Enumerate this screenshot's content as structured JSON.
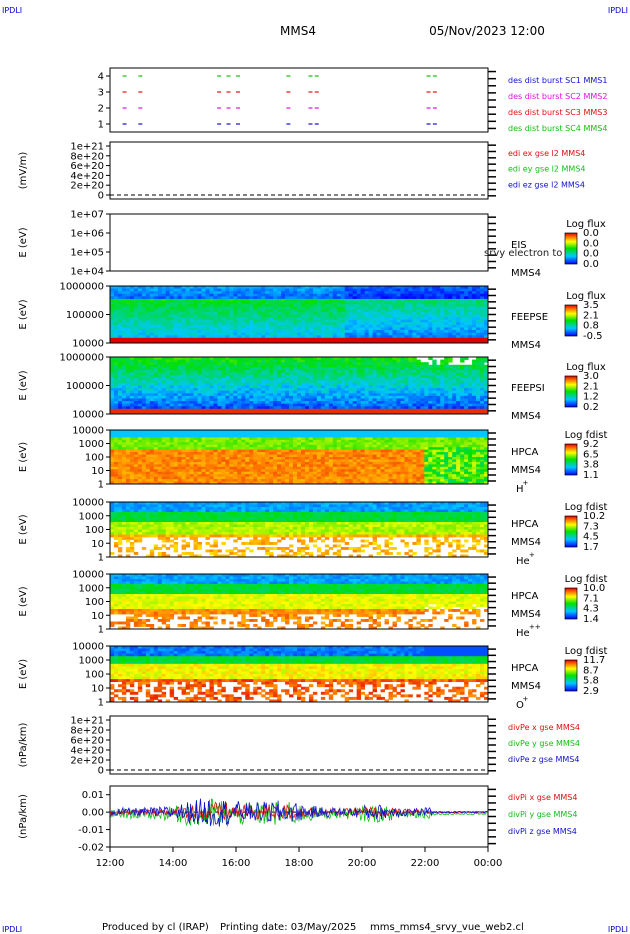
{
  "header": {
    "corner_tl": "IPDLI",
    "corner_tr": "IPDLI",
    "corner_bl": "IPDLI",
    "corner_br": "IPDLI",
    "spacecraft": "MMS4",
    "datetime": "05/Nov/2023 12:00"
  },
  "footer": {
    "produced_by": "Produced by cl (IRAP)",
    "printing_date": "Printing date: 03/May/2025",
    "script": "mms_mms4_srvy_vue_web2.cl"
  },
  "colors": {
    "blue": "#1010d0",
    "magenta": "#e010e0",
    "red": "#e01010",
    "green": "#10c010"
  },
  "chart_data": {
    "type": "heatmap",
    "x_ticks": [
      "12:00",
      "14:00",
      "16:00",
      "18:00",
      "20:00",
      "22:00",
      "00:00"
    ],
    "panels": [
      {
        "id": "burst",
        "ytick_labels": [
          "4",
          "3",
          "2",
          "1"
        ],
        "ylabel": "",
        "side_labels": [
          {
            "text": "des dist burst SC1 MMS1",
            "color": "#1010d0"
          },
          {
            "text": "des dist burst SC2 MMS2",
            "color": "#e010e0"
          },
          {
            "text": "des dist burst SC3 MMS3",
            "color": "#e01010"
          },
          {
            "text": "des dist burst SC4 MMS4",
            "color": "#10c010"
          }
        ],
        "burst_times_hours": [
          0.4,
          0.9,
          3.4,
          3.7,
          4.0,
          5.6,
          6.3,
          6.5,
          10.05,
          10.25
        ]
      },
      {
        "id": "edi",
        "ylabel": "(mV/m)",
        "ytick_labels": [
          "1e+21",
          "8e+20",
          "6e+20",
          "4e+20",
          "2e+20",
          "0"
        ],
        "side_labels": [
          {
            "text": "edi ex gse l2 MMS4",
            "color": "#e01010"
          },
          {
            "text": "edi ey gse l2 MMS4",
            "color": "#10c010"
          },
          {
            "text": "edi ez gse l2 MMS4",
            "color": "#1010d0"
          }
        ]
      },
      {
        "id": "eis",
        "ylabel": "E (eV)",
        "ytick_labels": [
          "1e+07",
          "1e+06",
          "1e+05",
          "1e+04"
        ],
        "instrument": "EIS",
        "subtitle": "MMS4",
        "overlay_text": "srvy electron to",
        "cbar_title": "Log flux",
        "cbar_ticks": [
          "0.0",
          "0.0",
          "0.0",
          "0.0"
        ]
      },
      {
        "id": "feepse",
        "ylabel": "E (eV)",
        "ytick_labels": [
          "1000000",
          "100000",
          "10000"
        ],
        "instrument": "FEEPSE",
        "subtitle": "MMS4",
        "cbar_title": "Log flux",
        "cbar_ticks": [
          "3.5",
          "2.1",
          "0.8",
          "-0.5"
        ]
      },
      {
        "id": "feepsi",
        "ylabel": "E (eV)",
        "ytick_labels": [
          "1000000",
          "100000",
          "10000"
        ],
        "instrument": "FEEPSI",
        "subtitle": "MMS4",
        "cbar_title": "Log flux",
        "cbar_ticks": [
          "3.0",
          "2.1",
          "1.2",
          "0.2"
        ]
      },
      {
        "id": "hpca_h",
        "ylabel": "E (eV)",
        "ytick_labels": [
          "10000",
          "1000",
          "100",
          "10",
          "1"
        ],
        "instrument": "HPCA",
        "subtitle": "MMS4",
        "species": "H",
        "species_sup": "+",
        "cbar_title": "Log fdist",
        "cbar_ticks": [
          "9.2",
          "6.5",
          "3.8",
          "1.1"
        ]
      },
      {
        "id": "hpca_he",
        "ylabel": "E (eV)",
        "ytick_labels": [
          "10000",
          "1000",
          "100",
          "10",
          "1"
        ],
        "instrument": "HPCA",
        "subtitle": "MMS4",
        "species": "He",
        "species_sup": "+",
        "cbar_title": "Log fdist",
        "cbar_ticks": [
          "10.2",
          "7.3",
          "4.5",
          "1.7"
        ]
      },
      {
        "id": "hpca_hepp",
        "ylabel": "E (eV)",
        "ytick_labels": [
          "10000",
          "1000",
          "100",
          "10",
          "1"
        ],
        "instrument": "HPCA",
        "subtitle": "MMS4",
        "species": "He",
        "species_sup": "++",
        "cbar_title": "Log fdist",
        "cbar_ticks": [
          "10.0",
          "7.1",
          "4.3",
          "1.4"
        ]
      },
      {
        "id": "hpca_o",
        "ylabel": "E (eV)",
        "ytick_labels": [
          "10000",
          "1000",
          "100",
          "10",
          "1"
        ],
        "instrument": "HPCA",
        "subtitle": "MMS4",
        "species": "O",
        "species_sup": "+",
        "cbar_title": "Log fdist",
        "cbar_ticks": [
          "11.7",
          "8.7",
          "5.8",
          "2.9"
        ]
      },
      {
        "id": "divpe",
        "ylabel": "(nPa/km)",
        "ytick_labels": [
          "1e+21",
          "8e+20",
          "6e+20",
          "4e+20",
          "2e+20",
          "0"
        ],
        "side_labels": [
          {
            "text": "divPe x gse MMS4",
            "color": "#e01010"
          },
          {
            "text": "divPe y gse MMS4",
            "color": "#10c010"
          },
          {
            "text": "divPe z gse MMS4",
            "color": "#1010d0"
          }
        ]
      },
      {
        "id": "divpi",
        "ylabel": "(nPa/km)",
        "ytick_labels": [
          "0.01",
          "0.00",
          "-0.01",
          "-0.02"
        ],
        "ytick_values": [
          0.01,
          0.0,
          -0.01,
          -0.02
        ],
        "ylim": [
          -0.02,
          0.015
        ],
        "side_labels": [
          {
            "text": "divPi x gse MMS4",
            "color": "#e01010"
          },
          {
            "text": "divPi y gse MMS4",
            "color": "#10c010"
          },
          {
            "text": "divPi z gse MMS4",
            "color": "#1010d0"
          }
        ]
      }
    ]
  }
}
